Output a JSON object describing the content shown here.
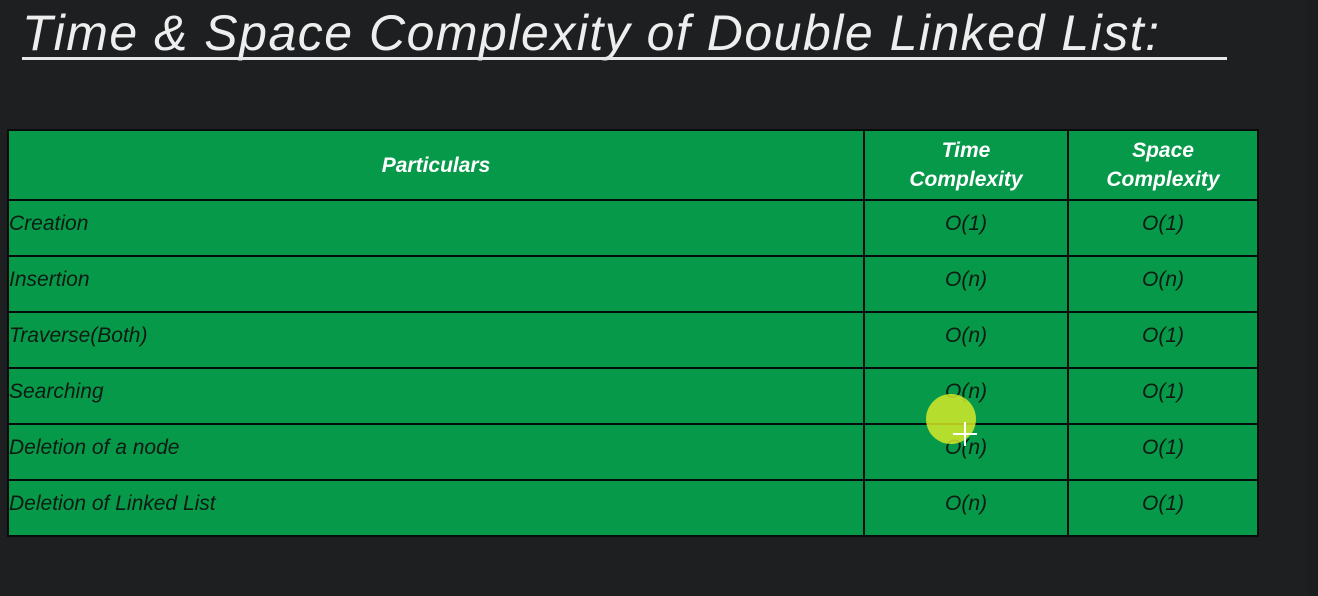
{
  "title": "Time & Space Complexity of Double Linked List:",
  "table": {
    "headers": {
      "particulars": "Particulars",
      "time_line1": "Time",
      "time_line2": "Complexity",
      "space_line1": "Space",
      "space_line2": "Complexity"
    },
    "rows": [
      {
        "particular": "Creation",
        "time": "O(1)",
        "space": "O(1)"
      },
      {
        "particular": "Insertion",
        "time": "O(n)",
        "space": "O(n)"
      },
      {
        "particular": "Traverse(Both)",
        "time": "O(n)",
        "space": "O(1)"
      },
      {
        "particular": "Searching",
        "time": "O(n)",
        "space": "O(1)"
      },
      {
        "particular": "Deletion of a node",
        "time": "O(n)",
        "space": "O(1)"
      },
      {
        "particular": "Deletion of Linked List",
        "time": "O(n)",
        "space": "O(1)"
      }
    ]
  },
  "colors": {
    "background": "#1d1f20",
    "table_fill": "#07994a",
    "border": "#0b0b0b",
    "header_text": "#ffffff",
    "cell_text": "#0e1a12",
    "cursor_highlight": "#dceb28"
  }
}
